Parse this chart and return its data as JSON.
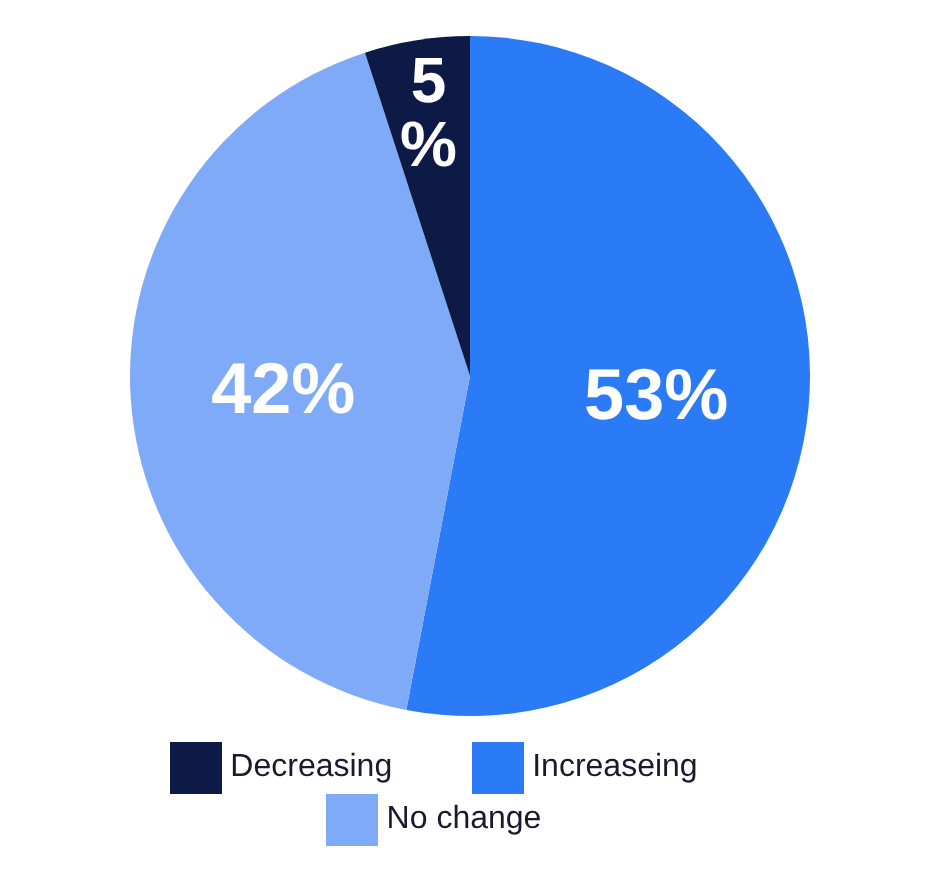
{
  "chart_data": {
    "type": "pie",
    "categories": [
      "Increaseing",
      "No change",
      "Decreasing"
    ],
    "values": [
      53,
      42,
      5
    ],
    "colors": [
      "#2b7bf7",
      "#7eaaf7",
      "#0c1a45"
    ],
    "value_labels": [
      "53%",
      "42%",
      "5%"
    ],
    "legend": "bottom"
  }
}
